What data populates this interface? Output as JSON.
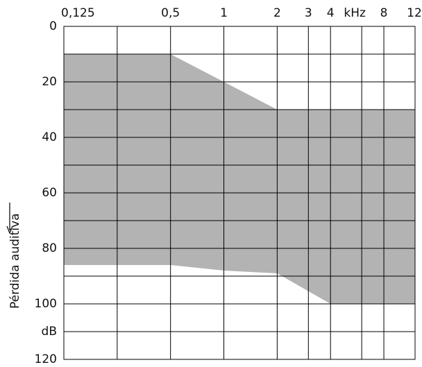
{
  "chart_data": {
    "type": "area",
    "y_label": "Pérdida auditiva",
    "log_x": true,
    "y_inverted": true,
    "xlim": [
      0.125,
      12
    ],
    "ylim": [
      0,
      120
    ],
    "xticks": [
      {
        "value": 0.125,
        "label": "0,125"
      },
      {
        "value": 0.25,
        "label": null
      },
      {
        "value": 0.5,
        "label": "0,5"
      },
      1,
      2,
      3,
      4,
      {
        "value": 6,
        "label": "kHz"
      },
      8,
      12
    ],
    "yticks": [
      0,
      {
        "value": 10,
        "label": null
      },
      20,
      {
        "value": 30,
        "label": null
      },
      40,
      {
        "value": 50,
        "label": null
      },
      60,
      {
        "value": 70,
        "label": null
      },
      80,
      {
        "value": 90,
        "label": null
      },
      100,
      {
        "value": 110,
        "label": "dB"
      },
      120
    ],
    "grid": true,
    "series": [
      {
        "role": "upper",
        "color": "#ffffff",
        "x": [
          0.125,
          0.5,
          1,
          2,
          12
        ],
        "values": [
          10,
          10,
          20,
          30,
          30
        ]
      },
      {
        "role": "lower",
        "color": "#b3b3b3",
        "x": [
          0.125,
          0.5,
          1,
          2,
          4,
          12
        ],
        "values": [
          86,
          86,
          88,
          89,
          100,
          100
        ]
      }
    ]
  }
}
